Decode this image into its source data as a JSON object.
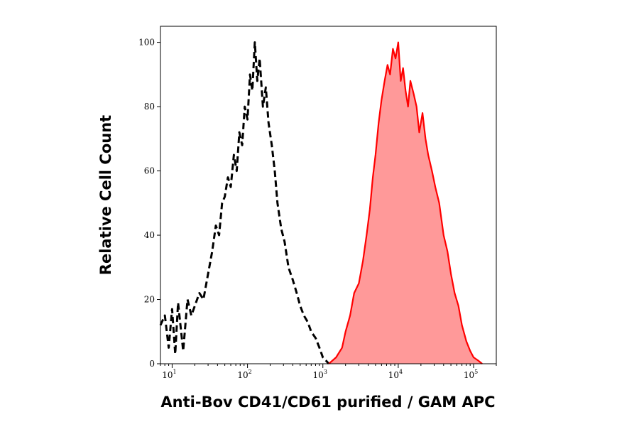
{
  "chart_data": {
    "type": "area",
    "title": "",
    "xlabel": "Anti-Bov CD41/CD61 purified / GAM APC",
    "ylabel": "Relative Cell Count",
    "x_scale": "log",
    "xlim": [
      7,
      200000
    ],
    "ylim": [
      0,
      105
    ],
    "y_ticks": [
      0,
      20,
      40,
      60,
      80,
      100
    ],
    "x_ticks": [
      {
        "value": 10,
        "base": "10",
        "exp": "1"
      },
      {
        "value": 100,
        "base": "10",
        "exp": "2"
      },
      {
        "value": 1000,
        "base": "10",
        "exp": "3"
      },
      {
        "value": 10000,
        "base": "10",
        "exp": "4"
      },
      {
        "value": 100000,
        "base": "10",
        "exp": "5"
      }
    ],
    "grid": false,
    "legend": "none",
    "series": [
      {
        "style": "dashed",
        "color": "#000000",
        "x": [
          7,
          8,
          9,
          10,
          11,
          12,
          14,
          16,
          18,
          20,
          23,
          26,
          30,
          34,
          38,
          42,
          46,
          50,
          55,
          60,
          66,
          72,
          78,
          85,
          92,
          100,
          108,
          116,
          125,
          135,
          145,
          160,
          175,
          190,
          210,
          230,
          250,
          280,
          310,
          350,
          400,
          450,
          500,
          560,
          630,
          700,
          800,
          900,
          1000,
          1100,
          1200
        ],
        "y": [
          12,
          15,
          5,
          17,
          3,
          19,
          4,
          20,
          15,
          18,
          22,
          20,
          28,
          35,
          43,
          40,
          50,
          52,
          58,
          55,
          65,
          60,
          72,
          68,
          80,
          76,
          90,
          85,
          100,
          88,
          95,
          80,
          86,
          75,
          68,
          60,
          50,
          42,
          38,
          30,
          26,
          22,
          18,
          15,
          13,
          10,
          8,
          5,
          2,
          1,
          0
        ]
      },
      {
        "style": "filled",
        "color": "#ff0000",
        "fill": "#ff9999",
        "x": [
          1200,
          1500,
          1800,
          2000,
          2300,
          2600,
          3000,
          3400,
          3800,
          4200,
          4600,
          5000,
          5500,
          6000,
          6600,
          7200,
          7800,
          8500,
          9200,
          10000,
          10800,
          11600,
          12500,
          13500,
          14500,
          16000,
          17500,
          19000,
          21000,
          23000,
          25000,
          28000,
          31000,
          35000,
          40000,
          45000,
          50000,
          56000,
          63000,
          70000,
          80000,
          90000,
          100000,
          115000,
          130000
        ],
        "y": [
          0,
          2,
          5,
          10,
          15,
          22,
          25,
          32,
          40,
          48,
          58,
          65,
          75,
          82,
          88,
          93,
          90,
          98,
          95,
          100,
          88,
          92,
          85,
          80,
          88,
          84,
          80,
          72,
          78,
          70,
          65,
          60,
          55,
          50,
          40,
          35,
          28,
          22,
          18,
          12,
          7,
          4,
          2,
          1,
          0
        ]
      }
    ]
  }
}
